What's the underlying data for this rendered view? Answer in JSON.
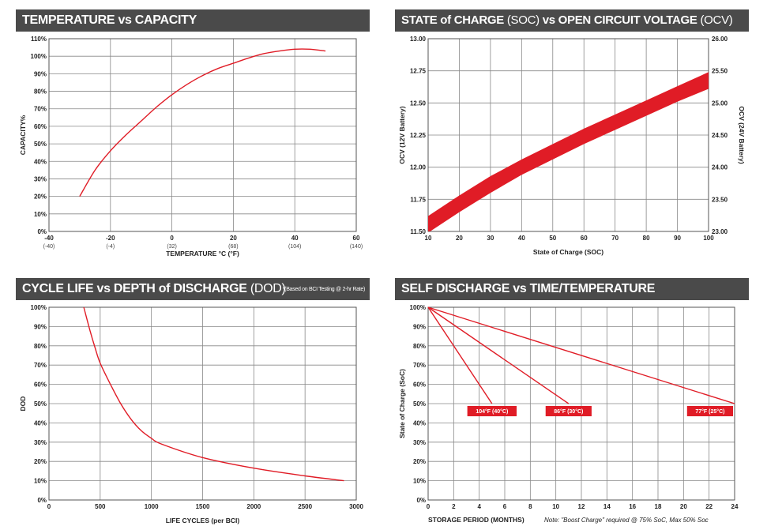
{
  "panels": {
    "tvc": {
      "title": "TEMPERATURE vs CAPACITY"
    },
    "soc": {
      "title_bold": "STATE of CHARGE",
      "title_abbr1": "(SOC)",
      "title_mid": "vs OPEN CIRCUIT VOLTAGE",
      "title_abbr2": "(OCV)"
    },
    "cyc": {
      "title_bold": "CYCLE LIFE vs DEPTH of DISCHARGE",
      "title_abbr": "(DOD)",
      "note": "*(Based on BCI Testing @ 2-hr Rate)"
    },
    "sd": {
      "title": "SELF DISCHARGE vs TIME/TEMPERATURE",
      "footnote": "Note: \"Boost Charge\" required @ 75% SoC, Max 50% Soc"
    }
  },
  "chart_data": [
    {
      "id": "tvc",
      "type": "line",
      "title": "TEMPERATURE vs CAPACITY",
      "xlabel": "TEMPERATURE °C (°F)",
      "ylabel": "CAPACITY%",
      "xlim": [
        -40,
        60
      ],
      "ylim": [
        0,
        110
      ],
      "x_ticks": [
        -40,
        -20,
        0,
        20,
        40,
        60
      ],
      "x_tick_labels": [
        "-40",
        "-20",
        "0",
        "20",
        "40",
        "60"
      ],
      "x_tick_sublabels": [
        "(-40)",
        "(-4)",
        "(32)",
        "(68)",
        "(104)",
        "(140)"
      ],
      "y_ticks": [
        0,
        10,
        20,
        30,
        40,
        50,
        60,
        70,
        80,
        90,
        100,
        110
      ],
      "y_tick_labels": [
        "0%",
        "10%",
        "20%",
        "30%",
        "40%",
        "50%",
        "60%",
        "70%",
        "80%",
        "90%",
        "100%",
        "110%"
      ],
      "grid": true,
      "series": [
        {
          "x": [
            -30,
            -25,
            -20,
            -15,
            -10,
            -5,
            0,
            5,
            10,
            15,
            20,
            25,
            30,
            35,
            40,
            45,
            50
          ],
          "y": [
            20,
            35,
            46,
            55,
            63,
            71,
            78,
            84,
            89,
            93,
            96,
            99,
            101.5,
            103,
            104,
            104,
            103
          ],
          "color": "#e01c26"
        }
      ]
    },
    {
      "id": "soc",
      "type": "area",
      "title": "STATE of CHARGE (SOC) vs OPEN CIRCUIT VOLTAGE (OCV)",
      "xlabel": "State of Charge (SOC)",
      "ylabel": "OCV (12V Battery)",
      "y2label": "OCV (24V Battery)",
      "xlim": [
        10,
        100
      ],
      "ylim": [
        11.5,
        13.0
      ],
      "y2lim": [
        23.0,
        26.0
      ],
      "x_ticks": [
        10,
        20,
        30,
        40,
        50,
        60,
        70,
        80,
        90,
        100
      ],
      "x_tick_labels": [
        "10",
        "20",
        "30",
        "40",
        "50",
        "60",
        "70",
        "80",
        "90",
        "100"
      ],
      "y_ticks": [
        11.5,
        11.75,
        12.0,
        12.25,
        12.5,
        12.75,
        13.0
      ],
      "y_tick_labels": [
        "11.50",
        "11.75",
        "12.00",
        "12.25",
        "12.50",
        "12.75",
        "13.00"
      ],
      "y2_tick_labels": [
        "23.00",
        "23.50",
        "24.00",
        "24.50",
        "25.00",
        "25.50",
        "26.00"
      ],
      "grid": true,
      "series": [
        {
          "x": [
            10,
            20,
            30,
            40,
            50,
            60,
            70,
            80,
            90,
            100
          ],
          "upper": [
            11.62,
            11.78,
            11.93,
            12.06,
            12.18,
            12.3,
            12.41,
            12.52,
            12.63,
            12.74
          ],
          "lower": [
            11.49,
            11.65,
            11.8,
            11.94,
            12.06,
            12.18,
            12.29,
            12.4,
            12.51,
            12.61
          ],
          "color": "#e01c26"
        }
      ]
    },
    {
      "id": "cyc",
      "type": "line",
      "title": "CYCLE LIFE vs DEPTH of DISCHARGE (DOD)",
      "xlabel": "LIFE CYCLES (per BCI)",
      "ylabel": "DOD",
      "xlim": [
        0,
        3000
      ],
      "ylim": [
        0,
        100
      ],
      "x_ticks": [
        0,
        500,
        1000,
        1500,
        2000,
        2500,
        3000
      ],
      "x_tick_labels": [
        "0",
        "500",
        "1000",
        "1500",
        "2000",
        "2500",
        "3000"
      ],
      "y_ticks": [
        0,
        10,
        20,
        30,
        40,
        50,
        60,
        70,
        80,
        90,
        100
      ],
      "y_tick_labels": [
        "0%",
        "10%",
        "20%",
        "30%",
        "40%",
        "50%",
        "60%",
        "70%",
        "80%",
        "90%",
        "100%"
      ],
      "grid": true,
      "series": [
        {
          "x": [
            340,
            400,
            450,
            500,
            600,
            700,
            800,
            900,
            1000,
            1100,
            1500,
            2000,
            2500,
            2880
          ],
          "y": [
            100,
            88,
            79,
            71,
            60,
            50,
            42,
            36,
            32,
            29,
            22,
            16.5,
            12.5,
            10
          ],
          "color": "#e01c26"
        }
      ]
    },
    {
      "id": "sd",
      "type": "line",
      "title": "SELF DISCHARGE vs TIME/TEMPERATURE",
      "xlabel": "STORAGE PERIOD (MONTHS)",
      "ylabel": "State of Charge (SoC)",
      "xlim": [
        0,
        24
      ],
      "ylim": [
        0,
        100
      ],
      "x_ticks": [
        0,
        2,
        4,
        6,
        8,
        10,
        12,
        14,
        16,
        18,
        20,
        22,
        24
      ],
      "x_tick_labels": [
        "0",
        "2",
        "4",
        "6",
        "8",
        "10",
        "12",
        "14",
        "16",
        "18",
        "20",
        "22",
        "24"
      ],
      "y_ticks": [
        0,
        10,
        20,
        30,
        40,
        50,
        60,
        70,
        80,
        90,
        100
      ],
      "y_tick_labels": [
        "0%",
        "10%",
        "20%",
        "30%",
        "40%",
        "50%",
        "60%",
        "70%",
        "80%",
        "90%",
        "100%"
      ],
      "grid": true,
      "series": [
        {
          "name": "104°F (40°C)",
          "x": [
            0,
            5
          ],
          "y": [
            100,
            50
          ],
          "color": "#e01c26"
        },
        {
          "name": "86°F (30°C)",
          "x": [
            0,
            11
          ],
          "y": [
            100,
            50
          ],
          "color": "#e01c26"
        },
        {
          "name": "77°F (25°C)",
          "x": [
            0,
            24
          ],
          "y": [
            100,
            50
          ],
          "color": "#e01c26"
        }
      ]
    }
  ]
}
